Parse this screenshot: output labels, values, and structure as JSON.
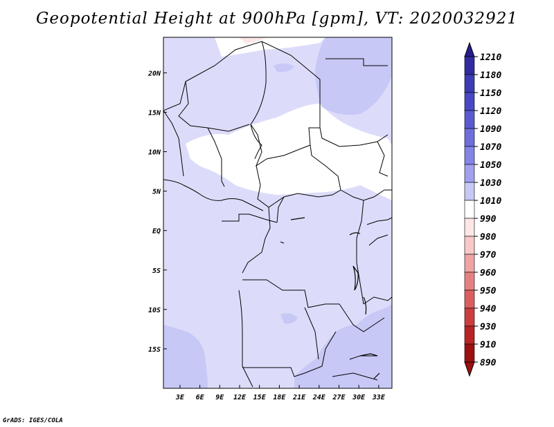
{
  "title": "Geopotential Height at 900hPa [gpm], VT: 2020032921",
  "credit": "GrADS: IGES/COLA",
  "map": {
    "lon_ticks": [
      "3E",
      "6E",
      "9E",
      "12E",
      "15E",
      "18E",
      "21E",
      "24E",
      "27E",
      "30E",
      "33E"
    ],
    "lat_ticks": [
      "20N",
      "15N",
      "10N",
      "5N",
      "EQ",
      "5S",
      "10S",
      "15S"
    ],
    "lon_range": [
      0.5,
      35
    ],
    "lat_range": [
      -20,
      24.5
    ]
  },
  "colorbar": {
    "levels": [
      "1210",
      "1180",
      "1150",
      "1120",
      "1090",
      "1070",
      "1050",
      "1030",
      "1010",
      "990",
      "980",
      "970",
      "960",
      "950",
      "940",
      "930",
      "910",
      "890"
    ],
    "colors": [
      "#281c8c",
      "#322aa0",
      "#3c3cb4",
      "#4848c4",
      "#5a5ad0",
      "#6e6edc",
      "#8484e6",
      "#a0a0ee",
      "#c8c8f6",
      "#ffffff",
      "#fde6e6",
      "#f9c8c8",
      "#f0a4a4",
      "#e68080",
      "#da5e5e",
      "#cc3e3e",
      "#b82424",
      "#9c1010"
    ]
  },
  "chart_data": {
    "type": "heatmap",
    "title": "Geopotential Height at 900hPa [gpm], VT: 2020032921",
    "variable": "Geopotential Height",
    "level": "900hPa",
    "units": "gpm",
    "valid_time": "2020032921",
    "x_range": [
      0.5,
      35
    ],
    "y_range": [
      -20,
      24.5
    ],
    "xticks": [
      "3E",
      "6E",
      "9E",
      "12E",
      "15E",
      "18E",
      "21E",
      "24E",
      "27E",
      "30E",
      "33E"
    ],
    "yticks": [
      "20N",
      "15N",
      "10N",
      "5N",
      "EQ",
      "5S",
      "10S",
      "15S"
    ],
    "legend_levels": [
      1210,
      1180,
      1150,
      1120,
      1090,
      1070,
      1050,
      1030,
      1010,
      990,
      980,
      970,
      960,
      950,
      940,
      930,
      910,
      890
    ]
  }
}
